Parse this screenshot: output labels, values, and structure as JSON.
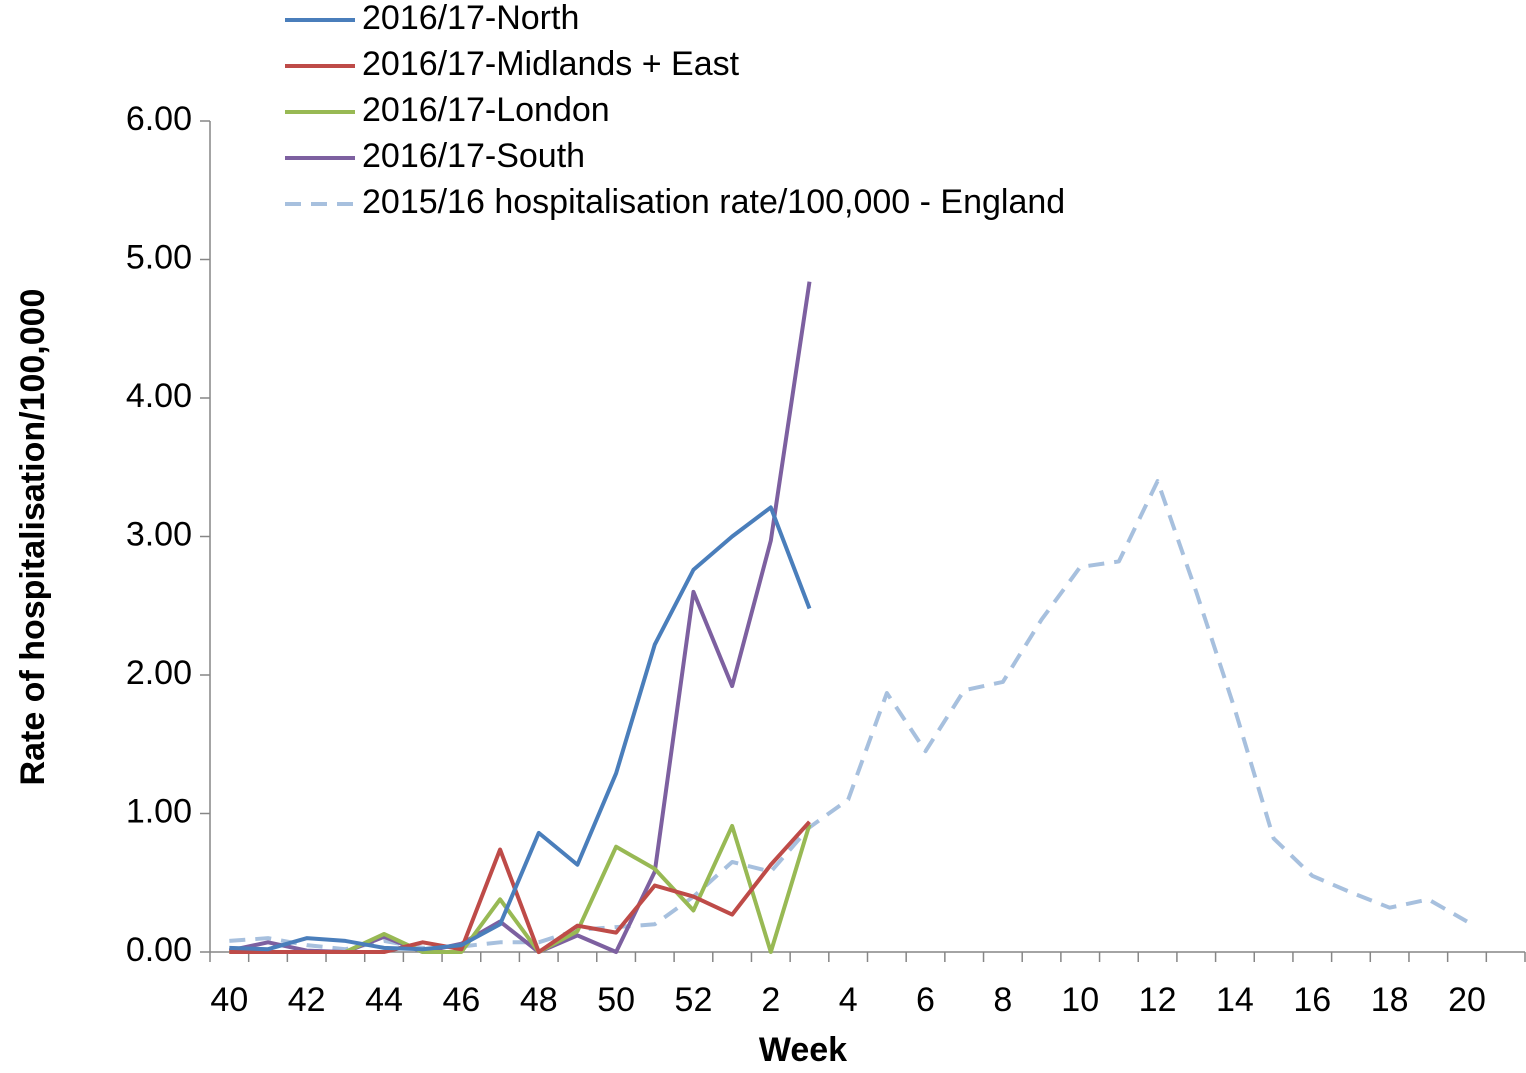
{
  "chart_data": {
    "type": "line",
    "x_label": "Week",
    "y_label": "Rate of hospitalisation/100,000",
    "categories": [
      "40",
      null,
      "42",
      null,
      "44",
      null,
      "46",
      null,
      "48",
      null,
      "50",
      null,
      "52",
      null,
      "2",
      null,
      "4",
      null,
      "6",
      null,
      "8",
      null,
      "10",
      null,
      "12",
      null,
      "14",
      null,
      "16",
      null,
      "18",
      null,
      "20"
    ],
    "ylim": [
      0,
      6
    ],
    "yticks": [
      {
        "value": 0,
        "label": "0.00"
      },
      {
        "value": 1,
        "label": "1.00"
      },
      {
        "value": 2,
        "label": "2.00"
      },
      {
        "value": 3,
        "label": "3.00"
      },
      {
        "value": 4,
        "label": "4.00"
      },
      {
        "value": 5,
        "label": "5.00"
      },
      {
        "value": 6,
        "label": "6.00"
      }
    ],
    "grid": false,
    "legend": "top",
    "series": [
      {
        "name": "2016/17-North",
        "color": "#4a7ebb",
        "dash": false,
        "values": [
          0.03,
          0.02,
          0.1,
          0.08,
          0.03,
          0.02,
          0.05,
          0.2,
          0.86,
          0.63,
          1.29,
          2.22,
          2.76,
          3.0,
          3.21,
          2.48,
          null,
          null,
          null,
          null,
          null,
          null,
          null,
          null,
          null,
          null,
          null,
          null,
          null,
          null,
          null,
          null,
          null
        ]
      },
      {
        "name": "2016/17-Midlands + East",
        "color": "#be4b48",
        "dash": false,
        "values": [
          0,
          0,
          0,
          0,
          0,
          0.07,
          0.02,
          0.74,
          0,
          0.19,
          0.14,
          0.48,
          0.4,
          0.27,
          0.63,
          0.94,
          null,
          null,
          null,
          null,
          null,
          null,
          null,
          null,
          null,
          null,
          null,
          null,
          null,
          null,
          null,
          null,
          null
        ]
      },
      {
        "name": "2016/17-London",
        "color": "#98b954",
        "dash": false,
        "values": [
          0,
          0,
          0,
          0,
          0.13,
          0,
          0,
          0.38,
          0,
          0.15,
          0.76,
          0.6,
          0.3,
          0.91,
          0,
          0.92,
          null,
          null,
          null,
          null,
          null,
          null,
          null,
          null,
          null,
          null,
          null,
          null,
          null,
          null,
          null,
          null,
          null
        ]
      },
      {
        "name": "2016/17-South",
        "color": "#7d60a0",
        "dash": false,
        "values": [
          0.01,
          0.07,
          0.01,
          0,
          0.11,
          0,
          0.06,
          0.22,
          0,
          0.12,
          0,
          0.58,
          2.6,
          1.92,
          2.97,
          4.84,
          null,
          null,
          null,
          null,
          null,
          null,
          null,
          null,
          null,
          null,
          null,
          null,
          null,
          null,
          null,
          null,
          null
        ]
      },
      {
        "name": "2015/16 hospitalisation rate/100,000 - England",
        "color": "#a7c0de",
        "dash": true,
        "values": [
          0.08,
          0.1,
          0.05,
          0.02,
          0.08,
          0.03,
          0.04,
          0.07,
          0.07,
          0.16,
          0.18,
          0.2,
          0.4,
          0.65,
          0.58,
          0.9,
          1.1,
          1.87,
          1.45,
          1.89,
          1.95,
          2.4,
          2.78,
          2.82,
          3.4,
          2.6,
          1.75,
          0.82,
          0.55,
          0.43,
          0.32,
          0.38,
          0.22
        ]
      }
    ]
  }
}
